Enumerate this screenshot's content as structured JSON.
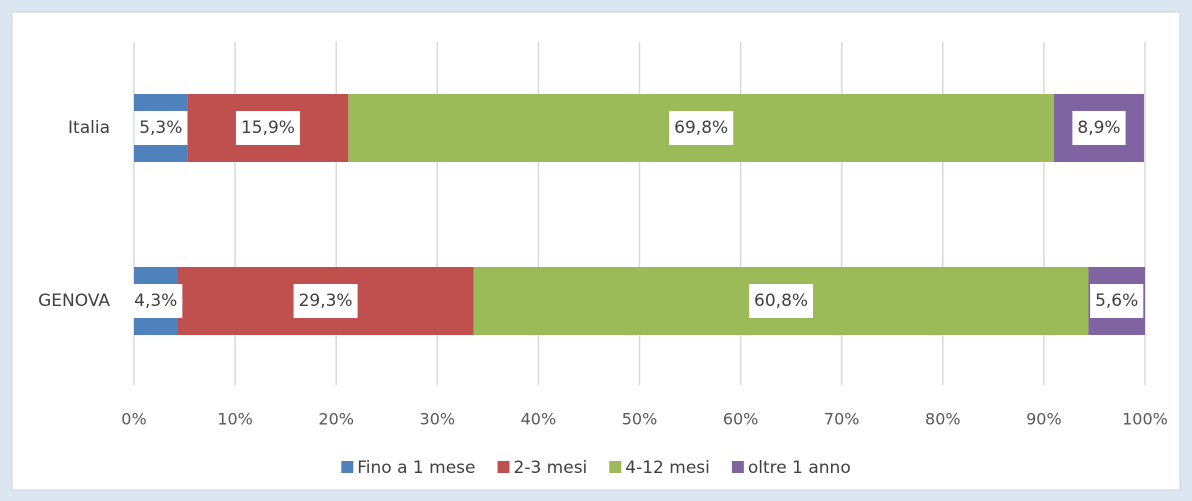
{
  "chart_data": {
    "type": "bar",
    "orientation": "horizontal",
    "stacked": true,
    "categories": [
      "Italia",
      "GENOVA"
    ],
    "series": [
      {
        "name": "Fino a 1 mese",
        "color": "#4f81bd",
        "values": [
          5.3,
          4.3
        ],
        "value_labels": [
          "5,3%",
          "4,3%"
        ]
      },
      {
        "name": "2-3 mesi",
        "color": "#c0504d",
        "values": [
          15.9,
          29.3
        ],
        "value_labels": [
          "15,9%",
          "29,3%"
        ]
      },
      {
        "name": "4-12 mesi",
        "color": "#9bbb59",
        "values": [
          69.8,
          60.8
        ],
        "value_labels": [
          "69,8%",
          "60,8%"
        ]
      },
      {
        "name": "oltre 1 anno",
        "color": "#8064a2",
        "values": [
          8.9,
          5.6
        ],
        "value_labels": [
          "8,9%",
          "5,6%"
        ]
      }
    ],
    "xlim": [
      0,
      100
    ],
    "xticks": [
      {
        "value": 0,
        "label": "0%"
      },
      {
        "value": 10,
        "label": "10%"
      },
      {
        "value": 20,
        "label": "20%"
      },
      {
        "value": 30,
        "label": "30%"
      },
      {
        "value": 40,
        "label": "40%"
      },
      {
        "value": 50,
        "label": "50%"
      },
      {
        "value": 60,
        "label": "60%"
      },
      {
        "value": 70,
        "label": "70%"
      },
      {
        "value": 80,
        "label": "80%"
      },
      {
        "value": 90,
        "label": "90%"
      },
      {
        "value": 100,
        "label": "100%"
      }
    ],
    "grid": true,
    "legend": "bottom"
  }
}
